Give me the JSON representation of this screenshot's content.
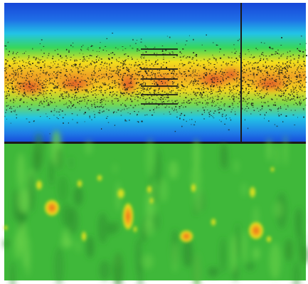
{
  "image": {
    "description_name": "spectrogram-heatmap-composite",
    "top_panel": {
      "kind": "rainbow-colormap-intensity-band",
      "colors": {
        "edge_blue": "#1746d8",
        "cyan": "#22c4e6",
        "green": "#38d65a",
        "yellow": "#f2e01c",
        "orange": "#f08a22",
        "red": "#d8402a",
        "speckle": "#1a1a1a"
      }
    },
    "bottom_panel": {
      "kind": "green-background-with-hotspots",
      "colors": {
        "background": "#3fb83a",
        "dark_green": "#2f8f2e",
        "light_green": "#6ad24a",
        "yellow": "#e8e21a",
        "orange": "#f2a81e",
        "red": "#e8661e"
      }
    },
    "frame_color": "#ffffff"
  }
}
